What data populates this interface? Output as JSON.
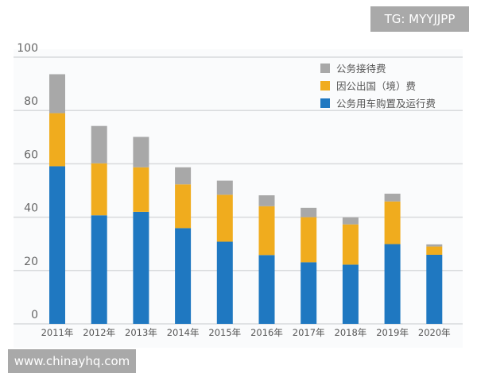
{
  "chart_data": {
    "type": "bar",
    "stacked": true,
    "categories": [
      "2011年",
      "2012年",
      "2013年",
      "2014年",
      "2015年",
      "2016年",
      "2017年",
      "2018年",
      "2019年",
      "2020年"
    ],
    "series": [
      {
        "name": "公务用车购置及运行费",
        "color": "#1f78c1",
        "values": [
          59.1,
          40.7,
          42.0,
          35.9,
          30.8,
          25.8,
          23.1,
          22.2,
          29.9,
          25.9
        ]
      },
      {
        "name": "因公出国（境）费",
        "color": "#f0ac1e",
        "values": [
          19.9,
          19.5,
          16.7,
          16.4,
          17.6,
          18.3,
          16.9,
          15.1,
          16.0,
          3.1
        ]
      },
      {
        "name": "公务接待费",
        "color": "#a8a8a8",
        "values": [
          14.6,
          14.0,
          11.4,
          6.4,
          5.3,
          4.1,
          3.5,
          2.6,
          2.9,
          0.8
        ]
      }
    ],
    "yticks": [
      "0",
      "20",
      "40",
      "60",
      "80",
      "100"
    ],
    "ylim": [
      0,
      100
    ],
    "grid": true,
    "legend": "top-right",
    "title": "",
    "xlabel": "",
    "ylabel": ""
  },
  "watermarks": {
    "top": "TG: MYYJJPP",
    "bottom": "www.chinayhq.com"
  }
}
